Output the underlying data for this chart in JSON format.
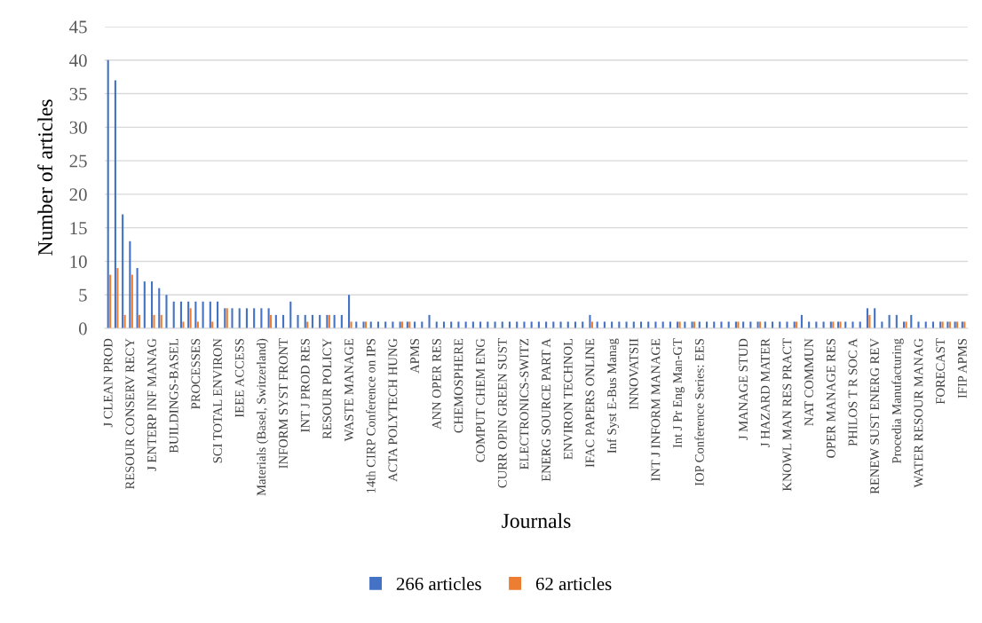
{
  "chart_data": {
    "type": "bar",
    "xlabel": "Journals",
    "ylabel": "Number of articles",
    "categories": [
      "J CLEAN PROD",
      null,
      null,
      "RESOUR CONSERV RECY",
      null,
      null,
      "J ENTERP INF MANAG",
      null,
      null,
      "BUILDINGS-BASEL",
      null,
      null,
      "PROCESSES",
      null,
      null,
      "SCI TOTAL ENVIRON",
      null,
      null,
      "IEEE ACCESS",
      null,
      null,
      "Materials (Basel, Switzerland)",
      null,
      null,
      "INFORM SYST FRONT",
      null,
      null,
      "INT J PROD RES",
      null,
      null,
      "RESOUR POLICY",
      null,
      null,
      "WASTE MANAGE",
      null,
      null,
      "14th CIRP Conference on IPS",
      null,
      null,
      "ACTA POLYTECH HUNG",
      null,
      null,
      "APMS",
      null,
      null,
      "ANN OPER RES",
      null,
      null,
      "CHEMOSPHERE",
      null,
      null,
      "COMPUT CHEM ENG",
      null,
      null,
      "CURR OPIN GREEN SUST",
      null,
      null,
      "ELECTRONICS-SWITZ",
      null,
      null,
      "ENERG SOURCE PART A",
      null,
      null,
      "ENVIRON TECHNOL",
      null,
      null,
      "IFAC PAPERS ONLINE",
      null,
      null,
      "Inf Syst E-Bus Manag",
      null,
      null,
      "INNOVATSII",
      null,
      null,
      "INT J INFORM MANAGE",
      null,
      null,
      "Int J Pr Eng Man-GT",
      null,
      null,
      "IOP Conference Series: EES",
      null,
      null,
      null,
      null,
      null,
      "J MANAGE STUD",
      null,
      null,
      "J HAZARD MATER",
      null,
      null,
      "KNOWL MAN RES PRACT",
      null,
      null,
      "NAT COMMUN",
      null,
      null,
      "OPER MANAGE RES",
      null,
      null,
      "PHILOS T R SOC A",
      null,
      null,
      "RENEW SUST ENERG REV",
      null,
      null,
      "Procedia Manufacturing",
      null,
      null,
      "WATER RESOUR MANAG",
      null,
      null,
      "FORECAST",
      null,
      null,
      "IFIP APMS"
    ],
    "series": [
      {
        "name": "266 articles",
        "color": "#4472c4",
        "values": [
          40,
          37,
          17,
          13,
          9,
          7,
          7,
          6,
          5,
          4,
          4,
          4,
          4,
          4,
          4,
          4,
          3,
          3,
          3,
          3,
          3,
          3,
          3,
          2,
          2,
          4,
          2,
          2,
          2,
          2,
          2,
          2,
          2,
          5,
          1,
          1,
          1,
          1,
          1,
          1,
          1,
          1,
          1,
          1,
          2,
          1,
          1,
          1,
          1,
          1,
          1,
          1,
          1,
          1,
          1,
          1,
          1,
          1,
          1,
          1,
          1,
          1,
          1,
          1,
          1,
          1,
          2,
          1,
          1,
          1,
          1,
          1,
          1,
          1,
          1,
          1,
          1,
          1,
          1,
          1,
          1,
          1,
          1,
          1,
          1,
          1,
          1,
          1,
          1,
          1,
          1,
          1,
          1,
          1,
          1,
          2,
          1,
          1,
          1,
          1,
          1,
          1,
          1,
          1,
          3,
          3,
          1,
          2,
          2,
          1,
          2,
          1,
          1,
          1,
          1,
          1,
          1,
          1
        ]
      },
      {
        "name": "62 articles",
        "color": "#ed7d31",
        "values": [
          8,
          9,
          2,
          8,
          2,
          0,
          2,
          2,
          0,
          0,
          1,
          3,
          1,
          0,
          1,
          0,
          3,
          0,
          0,
          0,
          0,
          0,
          2,
          0,
          0,
          0,
          0,
          1,
          0,
          0,
          2,
          0,
          0,
          1,
          0,
          1,
          0,
          0,
          0,
          0,
          1,
          1,
          0,
          0,
          0,
          0,
          0,
          0,
          0,
          0,
          0,
          0,
          0,
          0,
          0,
          0,
          0,
          0,
          0,
          0,
          0,
          0,
          0,
          0,
          0,
          0,
          1,
          0,
          0,
          0,
          0,
          0,
          0,
          0,
          0,
          0,
          0,
          0,
          1,
          0,
          1,
          0,
          0,
          0,
          0,
          0,
          1,
          0,
          0,
          1,
          0,
          0,
          0,
          0,
          1,
          0,
          0,
          0,
          0,
          1,
          1,
          0,
          0,
          0,
          2,
          0,
          0,
          0,
          0,
          1,
          0,
          0,
          0,
          0,
          1,
          1,
          1,
          1
        ]
      }
    ],
    "ylim": [
      0,
      45
    ],
    "yticks": [
      0,
      5,
      10,
      15,
      20,
      25,
      30,
      35,
      40,
      45
    ],
    "grid": "y",
    "legend": "bottom"
  }
}
